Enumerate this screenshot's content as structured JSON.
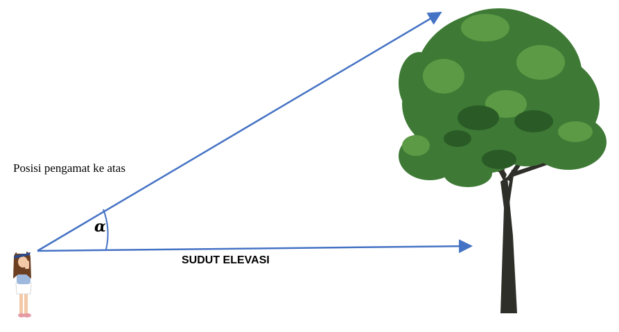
{
  "diagram": {
    "caption": "Posisi pengamat ke atas",
    "label": "SUDUT ELEVASI",
    "angle_symbol": "α"
  },
  "colors": {
    "line": "#4472c4",
    "tree_foliage": "#3e7a35",
    "tree_foliage_light": "#5c9a45",
    "tree_foliage_dark": "#2a5a26",
    "trunk": "#2f2f2a",
    "girl_hair": "#6b3f22",
    "girl_shirt": "#9fb9de",
    "girl_skirt": "#ffffff",
    "girl_skin": "#f3c9a7",
    "girl_shoe": "#e59aa3",
    "girl_hat": "#2d4a8a"
  },
  "icons": {
    "observer": "girl-observer-icon",
    "tree": "tree-icon"
  }
}
